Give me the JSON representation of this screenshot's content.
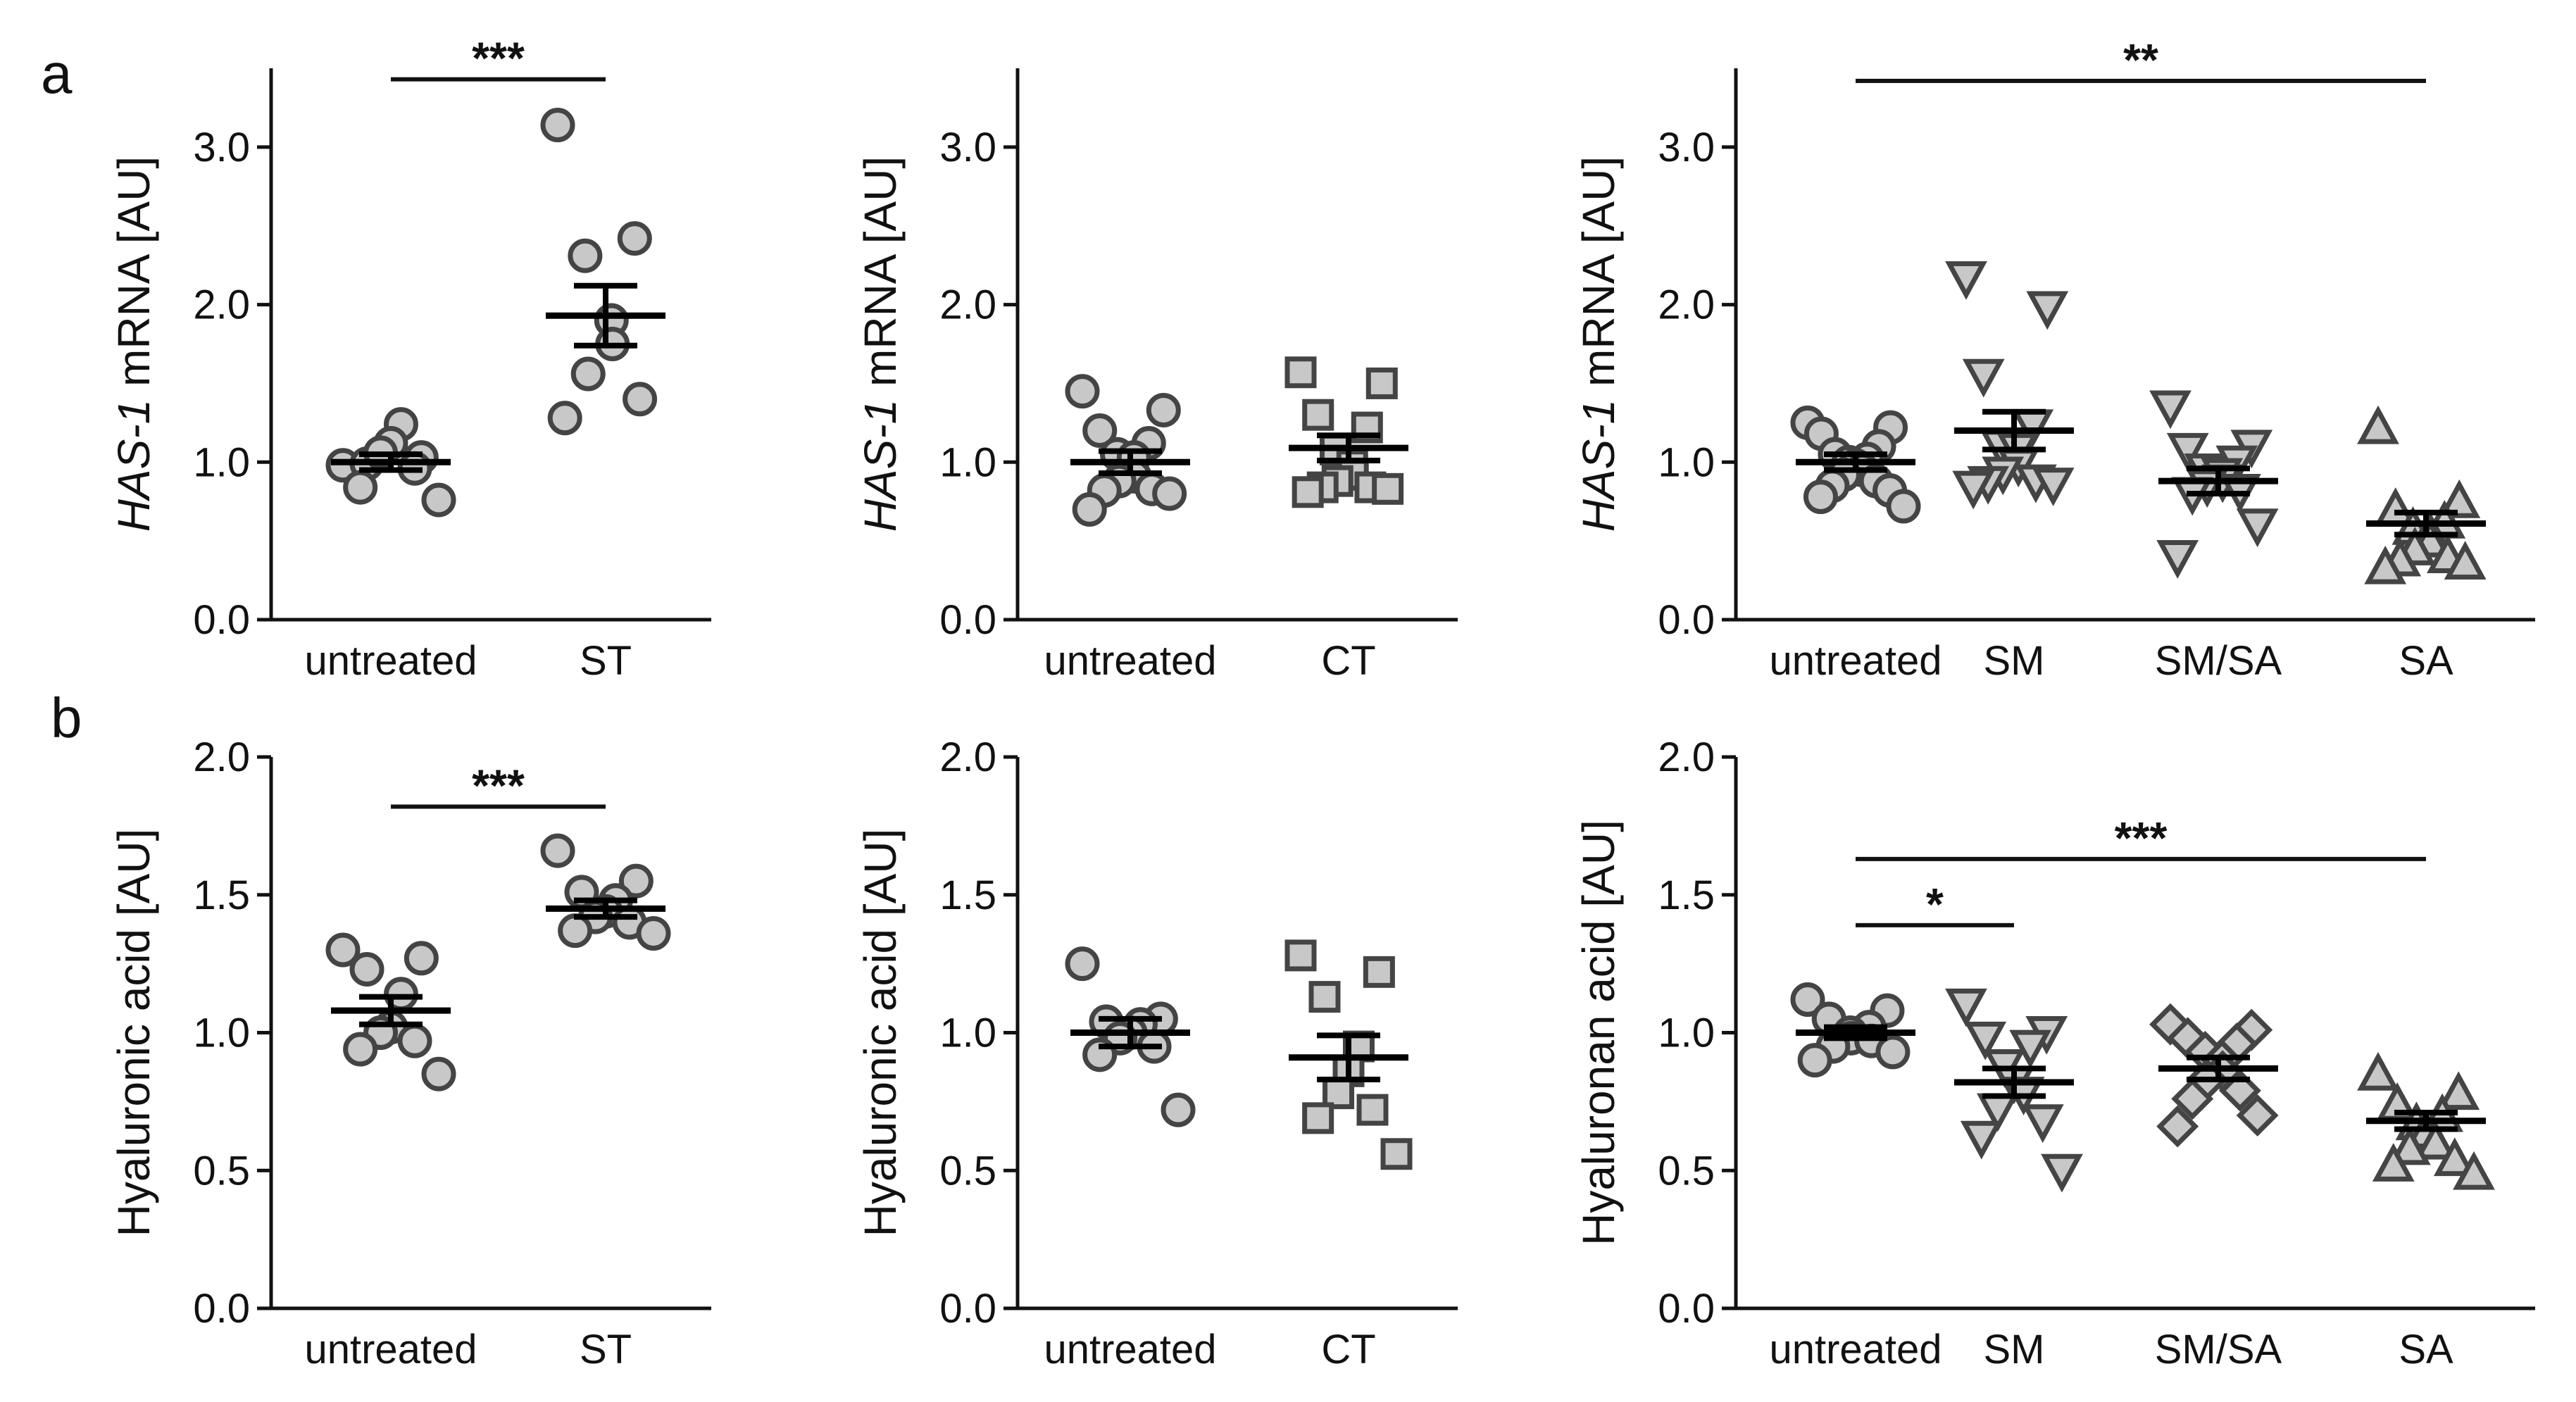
{
  "panel_letters": [
    "a",
    "b"
  ],
  "colors": {
    "marker_fill": "#c8c8c8",
    "marker_stroke": "#444444",
    "axis": "#111111",
    "mean_bar": "#000000"
  },
  "chart_data": [
    {
      "id": "a1",
      "type": "scatter",
      "row": "a",
      "ylabel_italic": "HAS-1",
      "ylabel_rest": " mRNA [AU]",
      "ylim": [
        0,
        3.5
      ],
      "yticks": [
        "0.0",
        "1.0",
        "2.0",
        "3.0"
      ],
      "categories": [
        "untreated",
        "ST"
      ],
      "series": [
        {
          "name": "untreated",
          "marker": "circle",
          "mean": 1.0,
          "sem": 0.05,
          "values": [
            0.98,
            1.03,
            0.99,
            1.24,
            1.12,
            1.06,
            0.96,
            0.84,
            0.76
          ]
        },
        {
          "name": "ST",
          "marker": "circle",
          "mean": 1.93,
          "sem": 0.19,
          "values": [
            3.14,
            2.42,
            2.31,
            1.9,
            1.75,
            1.56,
            1.4,
            1.28
          ]
        }
      ],
      "significance": [
        {
          "from": 0,
          "to": 1,
          "label": "***",
          "y": 3.43
        }
      ]
    },
    {
      "id": "a2",
      "type": "scatter",
      "row": "a",
      "ylabel_italic": "HAS-1",
      "ylabel_rest": " mRNA [AU]",
      "ylim": [
        0,
        3.5
      ],
      "yticks": [
        "0.0",
        "1.0",
        "2.0",
        "3.0"
      ],
      "categories": [
        "untreated",
        "CT"
      ],
      "series": [
        {
          "name": "untreated",
          "marker": "circle",
          "mean": 1.0,
          "sem": 0.07,
          "values": [
            1.45,
            1.33,
            1.2,
            1.12,
            1.05,
            1.03,
            0.91,
            0.88,
            0.83,
            0.82,
            0.8,
            0.7
          ]
        },
        {
          "name": "CT",
          "marker": "square",
          "mean": 1.09,
          "sem": 0.08,
          "values": [
            1.57,
            1.5,
            1.3,
            1.22,
            1.08,
            0.98,
            0.92,
            0.88,
            0.84,
            0.84,
            0.83,
            0.81
          ]
        }
      ],
      "significance": []
    },
    {
      "id": "a3",
      "type": "scatter",
      "row": "a",
      "ylabel_italic": "HAS-1",
      "ylabel_rest": " mRNA [AU]",
      "ylim": [
        0,
        3.5
      ],
      "yticks": [
        "0.0",
        "1.0",
        "2.0",
        "3.0"
      ],
      "categories": [
        "untreated",
        "SM",
        "SM/SA",
        "SA"
      ],
      "series": [
        {
          "name": "untreated",
          "marker": "circle",
          "mean": 1.0,
          "sem": 0.05,
          "values": [
            1.25,
            1.22,
            1.18,
            1.1,
            1.05,
            1.02,
            1.0,
            0.98,
            0.95,
            0.92,
            0.88,
            0.85,
            0.82,
            0.78,
            0.72
          ]
        },
        {
          "name": "SM",
          "marker": "triangle-down",
          "mean": 1.2,
          "sem": 0.12,
          "values": [
            2.17,
            1.98,
            1.55,
            1.23,
            1.1,
            1.08,
            0.98,
            0.93,
            0.88,
            0.87,
            0.86,
            0.84
          ]
        },
        {
          "name": "SM/SA",
          "marker": "triangle-down",
          "mean": 0.88,
          "sem": 0.08,
          "values": [
            1.35,
            1.1,
            1.08,
            1.0,
            0.95,
            0.92,
            0.88,
            0.85,
            0.82,
            0.8,
            0.6,
            0.4
          ]
        },
        {
          "name": "SA",
          "marker": "triangle-up",
          "mean": 0.61,
          "sem": 0.07,
          "values": [
            1.22,
            0.75,
            0.7,
            0.62,
            0.58,
            0.55,
            0.5,
            0.45,
            0.4,
            0.38,
            0.36,
            0.33
          ]
        }
      ],
      "significance": [
        {
          "from": 0,
          "to": 3,
          "label": "**",
          "y": 3.42
        }
      ]
    },
    {
      "id": "b1",
      "type": "scatter",
      "row": "b",
      "ylabel": "Hyaluronic acid [AU]",
      "ylim": [
        0,
        2.0
      ],
      "yticks": [
        "0.0",
        "0.5",
        "1.0",
        "1.5",
        "2.0"
      ],
      "categories": [
        "untreated",
        "ST"
      ],
      "series": [
        {
          "name": "untreated",
          "marker": "circle",
          "mean": 1.08,
          "sem": 0.05,
          "values": [
            1.3,
            1.27,
            1.23,
            1.14,
            1.02,
            1.0,
            0.97,
            0.94,
            0.85
          ]
        },
        {
          "name": "ST",
          "marker": "circle",
          "mean": 1.45,
          "sem": 0.03,
          "values": [
            1.66,
            1.55,
            1.51,
            1.48,
            1.44,
            1.42,
            1.4,
            1.37,
            1.36
          ]
        }
      ],
      "significance": [
        {
          "from": 0,
          "to": 1,
          "label": "***",
          "y": 1.82
        }
      ]
    },
    {
      "id": "b2",
      "type": "scatter",
      "row": "b",
      "ylabel": "Hyaluronic acid [AU]",
      "ylim": [
        0,
        2.0
      ],
      "yticks": [
        "0.0",
        "0.5",
        "1.0",
        "1.5",
        "2.0"
      ],
      "categories": [
        "untreated",
        "CT"
      ],
      "series": [
        {
          "name": "untreated",
          "marker": "circle",
          "mean": 1.0,
          "sem": 0.05,
          "values": [
            1.25,
            1.05,
            1.04,
            1.03,
            1.0,
            0.98,
            0.95,
            0.92,
            0.72
          ]
        },
        {
          "name": "CT",
          "marker": "square",
          "mean": 0.91,
          "sem": 0.08,
          "values": [
            1.28,
            1.22,
            1.13,
            0.95,
            0.86,
            0.78,
            0.72,
            0.69,
            0.56
          ]
        }
      ],
      "significance": []
    },
    {
      "id": "b3",
      "type": "scatter",
      "row": "b",
      "ylabel": "Hyaluronan acid [AU]",
      "ylim": [
        0,
        2.0
      ],
      "yticks": [
        "0.0",
        "0.5",
        "1.0",
        "1.5",
        "2.0"
      ],
      "categories": [
        "untreated",
        "SM",
        "SM/SA",
        "SA"
      ],
      "series": [
        {
          "name": "untreated",
          "marker": "circle",
          "mean": 1.0,
          "sem": 0.02,
          "values": [
            1.12,
            1.08,
            1.05,
            1.02,
            1.0,
            0.98,
            0.97,
            0.95,
            0.93,
            0.9
          ]
        },
        {
          "name": "SM",
          "marker": "triangle-down",
          "mean": 0.82,
          "sem": 0.05,
          "values": [
            1.1,
            1.0,
            0.98,
            0.95,
            0.88,
            0.82,
            0.78,
            0.72,
            0.68,
            0.62,
            0.5
          ]
        },
        {
          "name": "SM/SA",
          "marker": "diamond",
          "mean": 0.87,
          "sem": 0.04,
          "values": [
            1.03,
            1.01,
            0.98,
            0.96,
            0.93,
            0.9,
            0.86,
            0.83,
            0.79,
            0.76,
            0.7,
            0.66
          ]
        },
        {
          "name": "SA",
          "marker": "triangle-up",
          "mean": 0.68,
          "sem": 0.03,
          "values": [
            0.85,
            0.78,
            0.74,
            0.7,
            0.67,
            0.64,
            0.6,
            0.58,
            0.54,
            0.52,
            0.49
          ]
        }
      ],
      "significance": [
        {
          "from": 0,
          "to": 3,
          "label": "***",
          "y": 1.63
        },
        {
          "from": 0,
          "to": 1,
          "label": "*",
          "y": 1.39
        }
      ]
    }
  ]
}
